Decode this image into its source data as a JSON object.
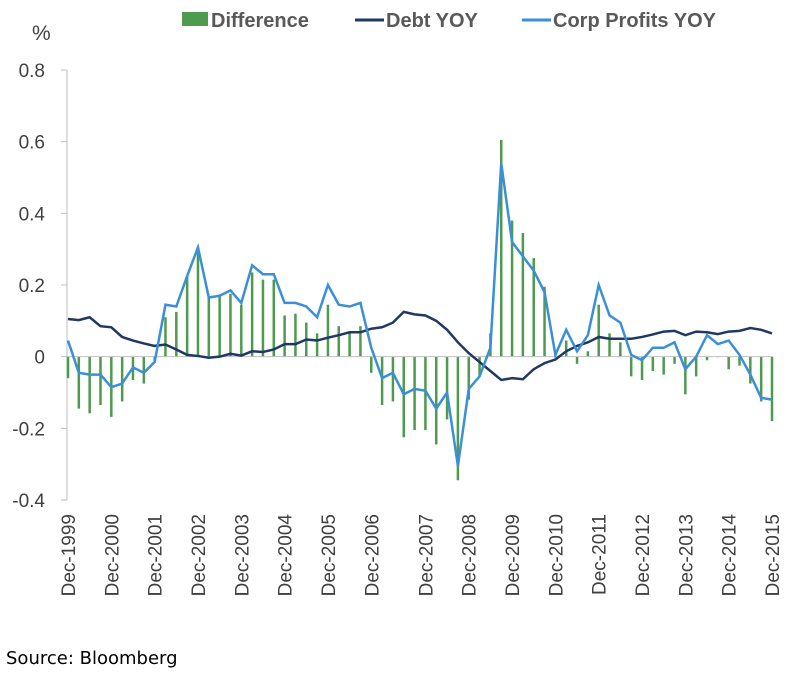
{
  "chart_data": {
    "type": "line",
    "ylabel": "%",
    "ylim": [
      -0.4,
      0.8
    ],
    "yticks": [
      "0.8",
      "0.6",
      "0.4",
      "0.2",
      "0",
      "-0.2",
      "-0.4"
    ],
    "ytick_values": [
      0.8,
      0.6,
      0.4,
      0.2,
      0,
      -0.2,
      -0.4
    ],
    "xtick_labels": [
      "Dec-1999",
      "Dec-2000",
      "Dec-2001",
      "Dec-2002",
      "Dec-2003",
      "Dec-2004",
      "Dec-2005",
      "Dec-2006",
      "Dec-2007",
      "Dec-2008",
      "Dec-2009",
      "Dec-2010",
      "Dec-2011",
      "Dec-2012",
      "Dec-2013",
      "Dec-2014",
      "Dec-2015"
    ],
    "grid": false,
    "legend_position": "top",
    "series": [
      {
        "name": "Difference",
        "type": "bar",
        "color": "#4e9a4e",
        "values": [
          -0.06,
          -0.145,
          -0.158,
          -0.135,
          -0.168,
          -0.125,
          -0.065,
          -0.075,
          -0.015,
          0.11,
          0.125,
          0.225,
          0.305,
          0.165,
          0.17,
          0.175,
          0.145,
          0.235,
          0.215,
          0.215,
          0.115,
          0.12,
          0.095,
          0.065,
          0.145,
          0.085,
          0.07,
          0.085,
          -0.045,
          -0.135,
          -0.125,
          -0.225,
          -0.205,
          -0.205,
          -0.245,
          -0.175,
          -0.345,
          -0.12,
          -0.055,
          0.065,
          0.605,
          0.38,
          0.345,
          0.275,
          0.195,
          0.005,
          0.045,
          -0.02,
          0.015,
          0.145,
          0.065,
          0.04,
          -0.055,
          -0.065,
          -0.04,
          -0.05,
          -0.02,
          -0.105,
          -0.055,
          -0.01,
          0.0,
          -0.035,
          -0.025,
          -0.075,
          -0.125,
          -0.18
        ]
      },
      {
        "name": "Debt YOY",
        "type": "line",
        "color": "#1f3864",
        "values": [
          0.105,
          0.102,
          0.11,
          0.085,
          0.082,
          0.055,
          0.045,
          0.037,
          0.03,
          0.034,
          0.02,
          0.005,
          0.002,
          -0.003,
          0.0,
          0.008,
          0.003,
          0.015,
          0.013,
          0.02,
          0.035,
          0.035,
          0.048,
          0.045,
          0.053,
          0.06,
          0.068,
          0.068,
          0.078,
          0.082,
          0.095,
          0.125,
          0.118,
          0.115,
          0.1,
          0.075,
          0.04,
          0.01,
          -0.015,
          -0.04,
          -0.065,
          -0.06,
          -0.063,
          -0.035,
          -0.018,
          -0.008,
          0.015,
          0.03,
          0.04,
          0.055,
          0.05,
          0.05,
          0.05,
          0.055,
          0.062,
          0.07,
          0.072,
          0.06,
          0.07,
          0.068,
          0.063,
          0.07,
          0.072,
          0.08,
          0.075,
          0.065
        ]
      },
      {
        "name": "Corp Profits YOY",
        "type": "line",
        "color": "#3a8fd6",
        "values": [
          0.045,
          -0.045,
          -0.05,
          -0.05,
          -0.085,
          -0.075,
          -0.03,
          -0.045,
          -0.015,
          0.145,
          0.14,
          0.225,
          0.305,
          0.165,
          0.17,
          0.185,
          0.15,
          0.255,
          0.23,
          0.23,
          0.15,
          0.15,
          0.14,
          0.11,
          0.2,
          0.145,
          0.14,
          0.15,
          0.025,
          -0.06,
          -0.045,
          -0.105,
          -0.09,
          -0.095,
          -0.145,
          -0.1,
          -0.305,
          -0.09,
          -0.055,
          0.025,
          0.54,
          0.32,
          0.28,
          0.24,
          0.18,
          0.005,
          0.075,
          0.015,
          0.06,
          0.2,
          0.115,
          0.095,
          0.005,
          -0.01,
          0.025,
          0.025,
          0.04,
          -0.035,
          0.0,
          0.06,
          0.035,
          0.045,
          0.005,
          -0.05,
          -0.115,
          -0.12
        ]
      }
    ]
  },
  "legend": {
    "difference": "Difference",
    "debt": "Debt YOY",
    "profits": "Corp Profits YOY"
  },
  "source": "Source: Bloomberg"
}
